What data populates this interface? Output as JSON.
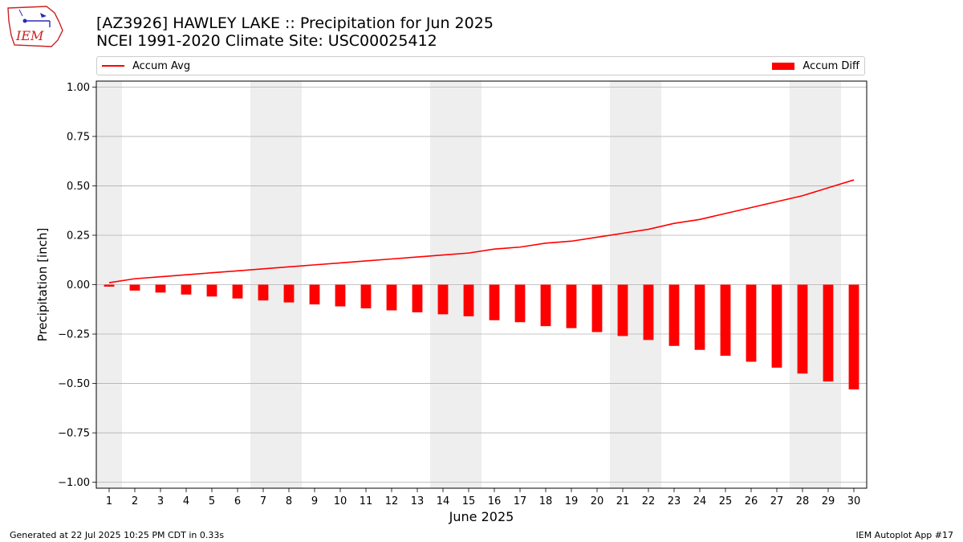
{
  "header": {
    "logo_text": "IEM",
    "title_line1": "[AZ3926] HAWLEY LAKE :: Precipitation for Jun 2025",
    "title_line2": "NCEI 1991-2020 Climate Site: USC00025412"
  },
  "legend": {
    "line_label": "Accum Avg",
    "bar_label": "Accum Diff"
  },
  "footer": {
    "generated": "Generated at 22 Jul 2025 10:25 PM CDT in 0.33s",
    "app": "IEM Autoplot App #17"
  },
  "colors": {
    "series": "#ff0000",
    "weekend_shade": "#eeeeee",
    "grid": "#b0b0b0"
  },
  "chart_data": {
    "type": "bar",
    "xlabel": "June 2025",
    "ylabel": "Precipitation [inch]",
    "ylim": [
      -1.03,
      1.03
    ],
    "yticks": [
      1.0,
      0.75,
      0.5,
      0.25,
      0.0,
      -0.25,
      -0.5,
      -0.75,
      -1.0
    ],
    "ytick_labels": [
      "1.00",
      "0.75",
      "0.50",
      "0.25",
      "0.00",
      "−0.25",
      "−0.50",
      "−0.75",
      "−1.00"
    ],
    "xlim": [
      0.5,
      30.5
    ],
    "x": [
      1,
      2,
      3,
      4,
      5,
      6,
      7,
      8,
      9,
      10,
      11,
      12,
      13,
      14,
      15,
      16,
      17,
      18,
      19,
      20,
      21,
      22,
      23,
      24,
      25,
      26,
      27,
      28,
      29,
      30
    ],
    "xtick_labels": [
      "1",
      "2",
      "3",
      "4",
      "5",
      "6",
      "7",
      "8",
      "9",
      "10",
      "11",
      "12",
      "13",
      "14",
      "15",
      "16",
      "17",
      "18",
      "19",
      "20",
      "21",
      "22",
      "23",
      "24",
      "25",
      "26",
      "27",
      "28",
      "29",
      "30"
    ],
    "grid": "y",
    "legend_position": "top",
    "shaded_weekend_days": [
      [
        0.5,
        1.5
      ],
      [
        6.5,
        8.5
      ],
      [
        13.5,
        15.5
      ],
      [
        20.5,
        22.5
      ],
      [
        27.5,
        29.5
      ]
    ],
    "series": [
      {
        "name": "Accum Avg",
        "type": "line",
        "values": [
          0.01,
          0.03,
          0.04,
          0.05,
          0.06,
          0.07,
          0.08,
          0.09,
          0.1,
          0.11,
          0.12,
          0.13,
          0.14,
          0.15,
          0.16,
          0.18,
          0.19,
          0.21,
          0.22,
          0.24,
          0.26,
          0.28,
          0.31,
          0.33,
          0.36,
          0.39,
          0.42,
          0.45,
          0.49,
          0.53
        ]
      },
      {
        "name": "Accum Diff",
        "type": "bar",
        "values": [
          -0.01,
          -0.03,
          -0.04,
          -0.05,
          -0.06,
          -0.07,
          -0.08,
          -0.09,
          -0.1,
          -0.11,
          -0.12,
          -0.13,
          -0.14,
          -0.15,
          -0.16,
          -0.18,
          -0.19,
          -0.21,
          -0.22,
          -0.24,
          -0.26,
          -0.28,
          -0.31,
          -0.33,
          -0.36,
          -0.39,
          -0.42,
          -0.45,
          -0.49,
          -0.53
        ]
      }
    ]
  }
}
